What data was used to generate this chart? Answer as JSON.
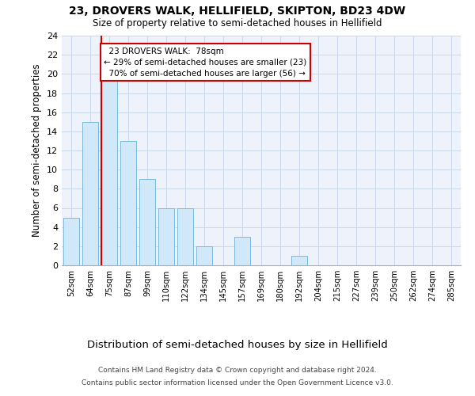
{
  "title": "23, DROVERS WALK, HELLIFIELD, SKIPTON, BD23 4DW",
  "subtitle": "Size of property relative to semi-detached houses in Hellifield",
  "xlabel": "Distribution of semi-detached houses by size in Hellifield",
  "ylabel": "Number of semi-detached properties",
  "footer_line1": "Contains HM Land Registry data © Crown copyright and database right 2024.",
  "footer_line2": "Contains public sector information licensed under the Open Government Licence v3.0.",
  "bin_labels": [
    "52sqm",
    "64sqm",
    "75sqm",
    "87sqm",
    "99sqm",
    "110sqm",
    "122sqm",
    "134sqm",
    "145sqm",
    "157sqm",
    "169sqm",
    "180sqm",
    "192sqm",
    "204sqm",
    "215sqm",
    "227sqm",
    "239sqm",
    "250sqm",
    "262sqm",
    "274sqm",
    "285sqm"
  ],
  "bar_values": [
    5,
    15,
    20,
    13,
    9,
    6,
    6,
    2,
    0,
    3,
    0,
    0,
    1,
    0,
    0,
    0,
    0,
    0,
    0,
    0,
    0
  ],
  "bar_color": "#d0e8f8",
  "bar_edge_color": "#7ab8d8",
  "property_bin_index": 2,
  "property_label": "23 DROVERS WALK:  78sqm",
  "smaller_pct": "29%",
  "smaller_count": 23,
  "larger_pct": "70%",
  "larger_count": 56,
  "annotation_box_facecolor": "#ffffff",
  "annotation_box_edgecolor": "#cc0000",
  "vline_color": "#cc0000",
  "ylim": [
    0,
    24
  ],
  "ytick_interval": 2,
  "grid_color": "#c8d8ec",
  "bg_color": "#eef2fa"
}
